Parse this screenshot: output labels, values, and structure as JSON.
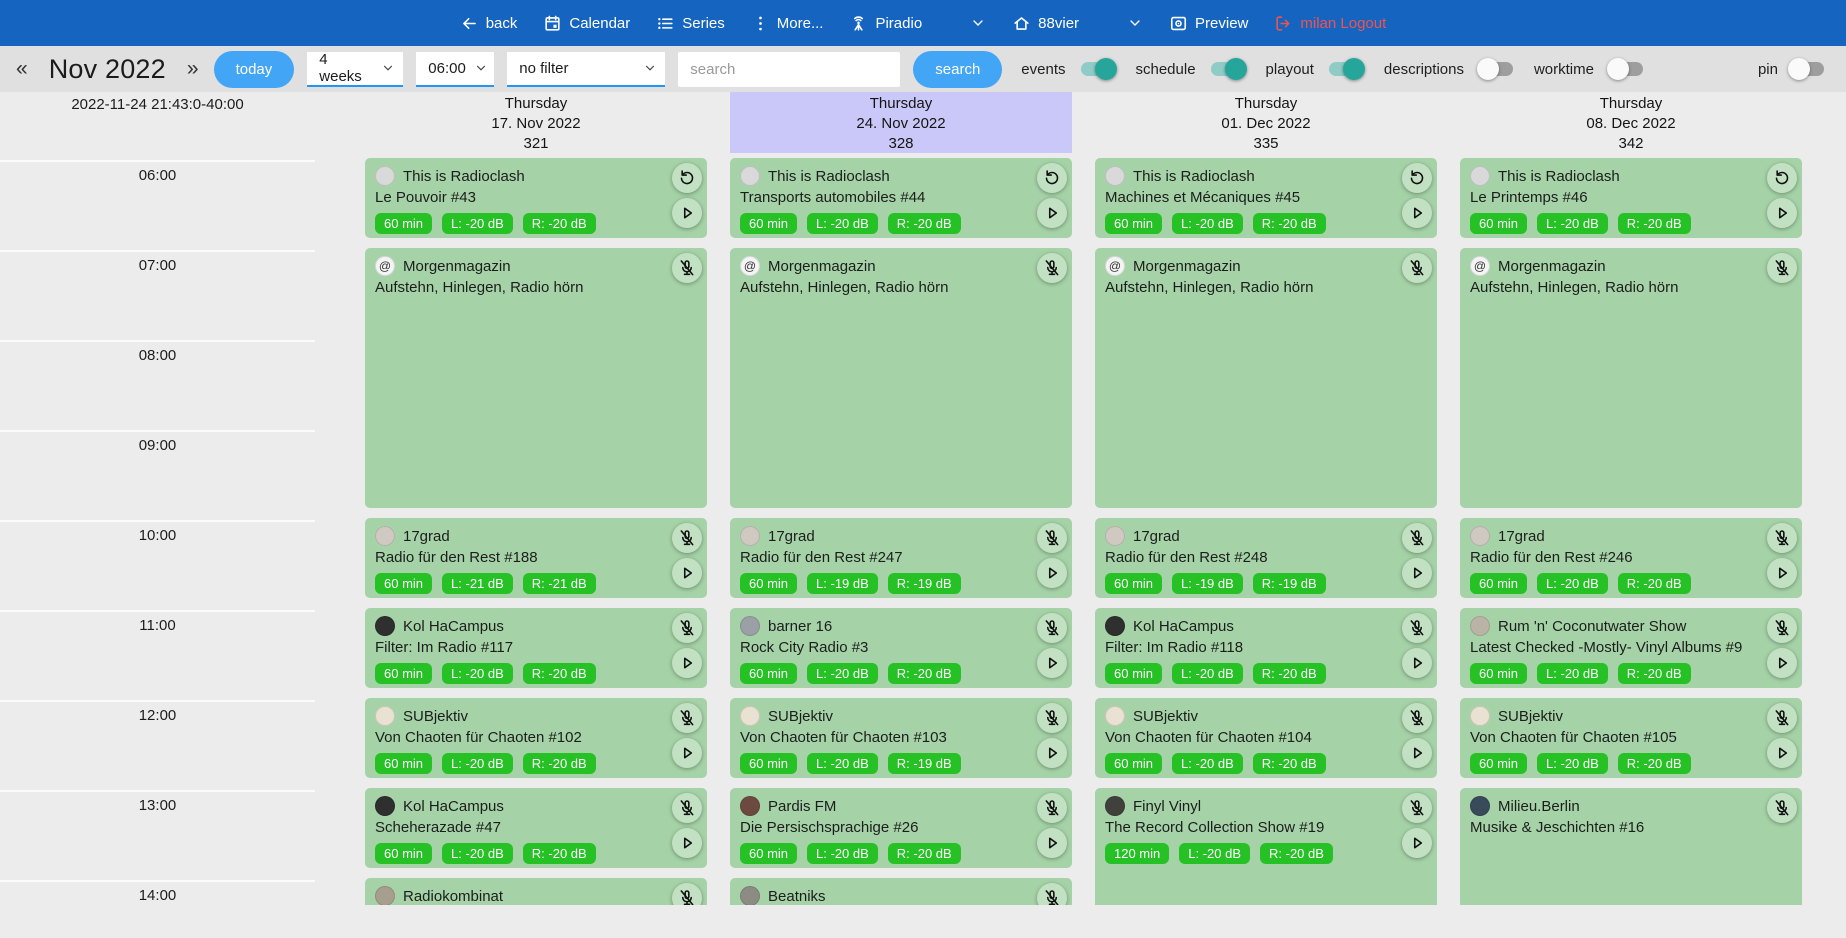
{
  "topnav": {
    "items": [
      {
        "label": "back",
        "icon": "arrow-left",
        "chevron": false
      },
      {
        "label": "Calendar",
        "icon": "calendar",
        "chevron": false
      },
      {
        "label": "Series",
        "icon": "list",
        "chevron": false
      },
      {
        "label": "More...",
        "icon": "kebab",
        "chevron": false
      },
      {
        "label": "Piradio",
        "icon": "antenna",
        "chevron": true
      },
      {
        "label": "88vier",
        "icon": "home",
        "chevron": true
      },
      {
        "label": "Preview",
        "icon": "preview",
        "chevron": false
      }
    ],
    "logout": {
      "label": "milan Logout",
      "icon": "logout",
      "color": "#ef5350"
    }
  },
  "toolbar": {
    "prev_label": "«",
    "month_label": "Nov 2022",
    "next_label": "»",
    "today_button": "today",
    "week_select": "4 weeks",
    "time_select": "06:00",
    "filter_select": "no filter",
    "search_placeholder": "search",
    "search_button": "search",
    "toggles": [
      {
        "label": "events",
        "on": true
      },
      {
        "label": "schedule",
        "on": true
      },
      {
        "label": "playout",
        "on": true
      },
      {
        "label": "descriptions",
        "on": false
      },
      {
        "label": "worktime",
        "on": false
      }
    ],
    "pin_toggle": {
      "label": "pin",
      "on": false
    },
    "accent_blue": "#42a5f5",
    "toggle_teal": "#26a69a"
  },
  "calendar": {
    "timestamp": "2022-11-24 21:43:0-40:00",
    "hours": [
      "06:00",
      "07:00",
      "08:00",
      "09:00",
      "10:00",
      "11:00",
      "12:00",
      "13:00",
      "14:00"
    ],
    "card_green": "#a5d3a7",
    "badge_green": "#25c125",
    "selected_header": "#c9c8f8",
    "columns": [
      {
        "weekday": "Thursday",
        "date": "17. Nov 2022",
        "day_number": "321",
        "selected": false,
        "events": [
          {
            "start": "06:00",
            "duration_min": 60,
            "title": "This is Radioclash",
            "subtitle": "Le Pouvoir #43",
            "badges": [
              "60 min",
              "L: -20 dB",
              "R: -20 dB"
            ],
            "action_icon": "replay",
            "play": true,
            "avatar": "#d9d9d9",
            "avatar_glyph": ""
          },
          {
            "start": "07:00",
            "duration_min": 180,
            "title": "Morgenmagazin",
            "subtitle": "Aufstehn, Hinlegen, Radio hörn",
            "badges": [],
            "action_icon": "mic-off",
            "play": false,
            "avatar": "#f4f4f4",
            "avatar_glyph": "@"
          },
          {
            "start": "10:00",
            "duration_min": 60,
            "title": "17grad",
            "subtitle": "Radio für den Rest #188",
            "badges": [
              "60 min",
              "L: -21 dB",
              "R: -21 dB"
            ],
            "action_icon": "mic-off",
            "play": true,
            "avatar": "#cfc9c2",
            "avatar_glyph": ""
          },
          {
            "start": "11:00",
            "duration_min": 60,
            "title": "Kol HaCampus",
            "subtitle": "Filter: Im Radio #117",
            "badges": [
              "60 min",
              "L: -20 dB",
              "R: -20 dB"
            ],
            "action_icon": "mic-off",
            "play": true,
            "avatar": "#2f2f2f",
            "avatar_glyph": ""
          },
          {
            "start": "12:00",
            "duration_min": 60,
            "title": "SUBjektiv",
            "subtitle": "Von Chaoten für Chaoten #102",
            "badges": [
              "60 min",
              "L: -20 dB",
              "R: -20 dB"
            ],
            "action_icon": "mic-off",
            "play": true,
            "avatar": "#e9e2d2",
            "avatar_glyph": ""
          },
          {
            "start": "13:00",
            "duration_min": 60,
            "title": "Kol HaCampus",
            "subtitle": "Scheherazade #47",
            "badges": [
              "60 min",
              "L: -20 dB",
              "R: -20 dB"
            ],
            "action_icon": "mic-off",
            "play": true,
            "avatar": "#2f2f2f",
            "avatar_glyph": ""
          },
          {
            "start": "14:00",
            "duration_min": 60,
            "title": "Radiokombinat",
            "subtitle": "",
            "badges": [],
            "action_icon": "mic-off",
            "play": false,
            "avatar": "#a89e8e",
            "avatar_glyph": ""
          }
        ]
      },
      {
        "weekday": "Thursday",
        "date": "24. Nov 2022",
        "day_number": "328",
        "selected": true,
        "events": [
          {
            "start": "06:00",
            "duration_min": 60,
            "title": "This is Radioclash",
            "subtitle": "Transports automobiles #44",
            "badges": [
              "60 min",
              "L: -20 dB",
              "R: -20 dB"
            ],
            "action_icon": "replay",
            "play": true,
            "avatar": "#d9d9d9",
            "avatar_glyph": ""
          },
          {
            "start": "07:00",
            "duration_min": 180,
            "title": "Morgenmagazin",
            "subtitle": "Aufstehn, Hinlegen, Radio hörn",
            "badges": [],
            "action_icon": "mic-off",
            "play": false,
            "avatar": "#f4f4f4",
            "avatar_glyph": "@"
          },
          {
            "start": "10:00",
            "duration_min": 60,
            "title": "17grad",
            "subtitle": "Radio für den Rest #247",
            "badges": [
              "60 min",
              "L: -19 dB",
              "R: -19 dB"
            ],
            "action_icon": "mic-off",
            "play": true,
            "avatar": "#cfc9c2",
            "avatar_glyph": ""
          },
          {
            "start": "11:00",
            "duration_min": 60,
            "title": "barner 16",
            "subtitle": "Rock City Radio #3",
            "badges": [
              "60 min",
              "L: -20 dB",
              "R: -20 dB"
            ],
            "action_icon": "mic-off",
            "play": true,
            "avatar": "#9aa0a6",
            "avatar_glyph": ""
          },
          {
            "start": "12:00",
            "duration_min": 60,
            "title": "SUBjektiv",
            "subtitle": "Von Chaoten für Chaoten #103",
            "badges": [
              "60 min",
              "L: -20 dB",
              "R: -19 dB"
            ],
            "action_icon": "mic-off",
            "play": true,
            "avatar": "#e9e2d2",
            "avatar_glyph": ""
          },
          {
            "start": "13:00",
            "duration_min": 60,
            "title": "Pardis FM",
            "subtitle": "Die Persischsprachige #26",
            "badges": [
              "60 min",
              "L: -20 dB",
              "R: -20 dB"
            ],
            "action_icon": "mic-off",
            "play": true,
            "avatar": "#6d4a3f",
            "avatar_glyph": ""
          },
          {
            "start": "14:00",
            "duration_min": 60,
            "title": "Beatniks",
            "subtitle": "",
            "badges": [],
            "action_icon": "mic-off",
            "play": false,
            "avatar": "#8c8c84",
            "avatar_glyph": ""
          }
        ]
      },
      {
        "weekday": "Thursday",
        "date": "01. Dec 2022",
        "day_number": "335",
        "selected": false,
        "events": [
          {
            "start": "06:00",
            "duration_min": 60,
            "title": "This is Radioclash",
            "subtitle": "Machines et Mécaniques #45",
            "badges": [
              "60 min",
              "L: -20 dB",
              "R: -20 dB"
            ],
            "action_icon": "replay",
            "play": true,
            "avatar": "#d9d9d9",
            "avatar_glyph": ""
          },
          {
            "start": "07:00",
            "duration_min": 180,
            "title": "Morgenmagazin",
            "subtitle": "Aufstehn, Hinlegen, Radio hörn",
            "badges": [],
            "action_icon": "mic-off",
            "play": false,
            "avatar": "#f4f4f4",
            "avatar_glyph": "@"
          },
          {
            "start": "10:00",
            "duration_min": 60,
            "title": "17grad",
            "subtitle": "Radio für den Rest #248",
            "badges": [
              "60 min",
              "L: -19 dB",
              "R: -19 dB"
            ],
            "action_icon": "mic-off",
            "play": true,
            "avatar": "#cfc9c2",
            "avatar_glyph": ""
          },
          {
            "start": "11:00",
            "duration_min": 60,
            "title": "Kol HaCampus",
            "subtitle": "Filter: Im Radio #118",
            "badges": [
              "60 min",
              "L: -20 dB",
              "R: -20 dB"
            ],
            "action_icon": "mic-off",
            "play": true,
            "avatar": "#2f2f2f",
            "avatar_glyph": ""
          },
          {
            "start": "12:00",
            "duration_min": 60,
            "title": "SUBjektiv",
            "subtitle": "Von Chaoten für Chaoten #104",
            "badges": [
              "60 min",
              "L: -20 dB",
              "R: -20 dB"
            ],
            "action_icon": "mic-off",
            "play": true,
            "avatar": "#e9e2d2",
            "avatar_glyph": ""
          },
          {
            "start": "13:00",
            "duration_min": 120,
            "title": "Finyl Vinyl",
            "subtitle": "The Record Collection Show #19",
            "badges": [
              "120 min",
              "L: -20 dB",
              "R: -20 dB"
            ],
            "action_icon": "mic-off",
            "play": true,
            "avatar": "#41413b",
            "avatar_glyph": ""
          }
        ]
      },
      {
        "weekday": "Thursday",
        "date": "08. Dec 2022",
        "day_number": "342",
        "selected": false,
        "events": [
          {
            "start": "06:00",
            "duration_min": 60,
            "title": "This is Radioclash",
            "subtitle": "Le Printemps #46",
            "badges": [
              "60 min",
              "L: -20 dB",
              "R: -20 dB"
            ],
            "action_icon": "replay",
            "play": true,
            "avatar": "#d9d9d9",
            "avatar_glyph": ""
          },
          {
            "start": "07:00",
            "duration_min": 180,
            "title": "Morgenmagazin",
            "subtitle": "Aufstehn, Hinlegen, Radio hörn",
            "badges": [],
            "action_icon": "mic-off",
            "play": false,
            "avatar": "#f4f4f4",
            "avatar_glyph": "@"
          },
          {
            "start": "10:00",
            "duration_min": 60,
            "title": "17grad",
            "subtitle": "Radio für den Rest #246",
            "badges": [
              "60 min",
              "L: -20 dB",
              "R: -20 dB"
            ],
            "action_icon": "mic-off",
            "play": true,
            "avatar": "#cfc9c2",
            "avatar_glyph": ""
          },
          {
            "start": "11:00",
            "duration_min": 60,
            "title": "Rum 'n' Coconutwater Show",
            "subtitle": "Latest Checked -Mostly- Vinyl Albums #9",
            "badges": [
              "60 min",
              "L: -20 dB",
              "R: -20 dB"
            ],
            "action_icon": "mic-off",
            "play": true,
            "avatar": "#b9b4a6",
            "avatar_glyph": ""
          },
          {
            "start": "12:00",
            "duration_min": 60,
            "title": "SUBjektiv",
            "subtitle": "Von Chaoten für Chaoten #105",
            "badges": [
              "60 min",
              "L: -20 dB",
              "R: -20 dB"
            ],
            "action_icon": "mic-off",
            "play": true,
            "avatar": "#e9e2d2",
            "avatar_glyph": ""
          },
          {
            "start": "13:00",
            "duration_min": 120,
            "title": "Milieu.Berlin",
            "subtitle": "Musike & Jeschichten #16",
            "badges": [],
            "action_icon": "mic-off",
            "play": false,
            "avatar": "#394a5a",
            "avatar_glyph": ""
          }
        ]
      }
    ]
  }
}
